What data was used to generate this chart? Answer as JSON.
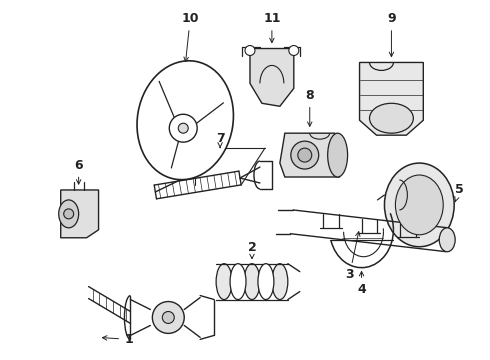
{
  "background_color": "#ffffff",
  "line_color": "#222222",
  "fig_width": 4.9,
  "fig_height": 3.6,
  "dpi": 100,
  "label_fontsize": 9,
  "arrow_lw": 0.7
}
